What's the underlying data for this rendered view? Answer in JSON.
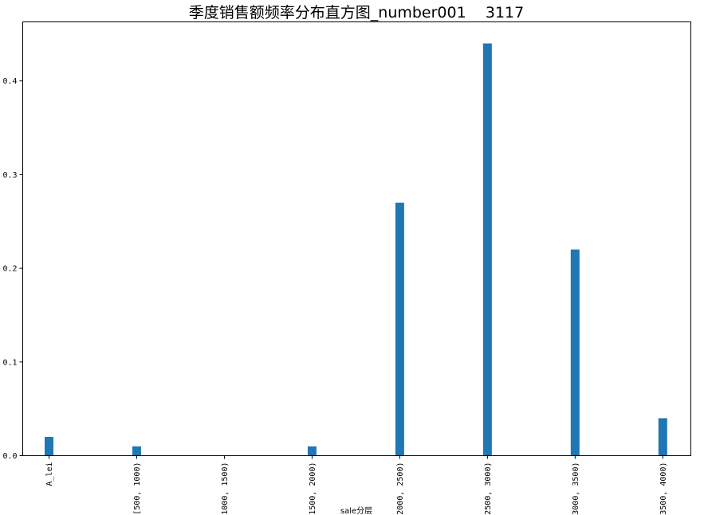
{
  "chart_data": {
    "type": "bar",
    "title": "季度销售额频率分布直方图_number001    3117",
    "xlabel": "sale分层",
    "ylabel": "",
    "categories": [
      "A_lei",
      "[500, 1000)",
      "[1000, 1500)",
      "[1500, 2000)",
      "[2000, 2500)",
      "[2500, 3000)",
      "[3000, 3500)",
      "[3500, 4000)"
    ],
    "values": [
      0.02,
      0.01,
      0.0,
      0.01,
      0.27,
      0.44,
      0.22,
      0.04
    ],
    "ylim": [
      0,
      0.463
    ],
    "yticks": [
      "0.0",
      "0.1",
      "0.2",
      "0.3",
      "0.4"
    ],
    "grid": false,
    "bar_color": "#1f77b4"
  }
}
